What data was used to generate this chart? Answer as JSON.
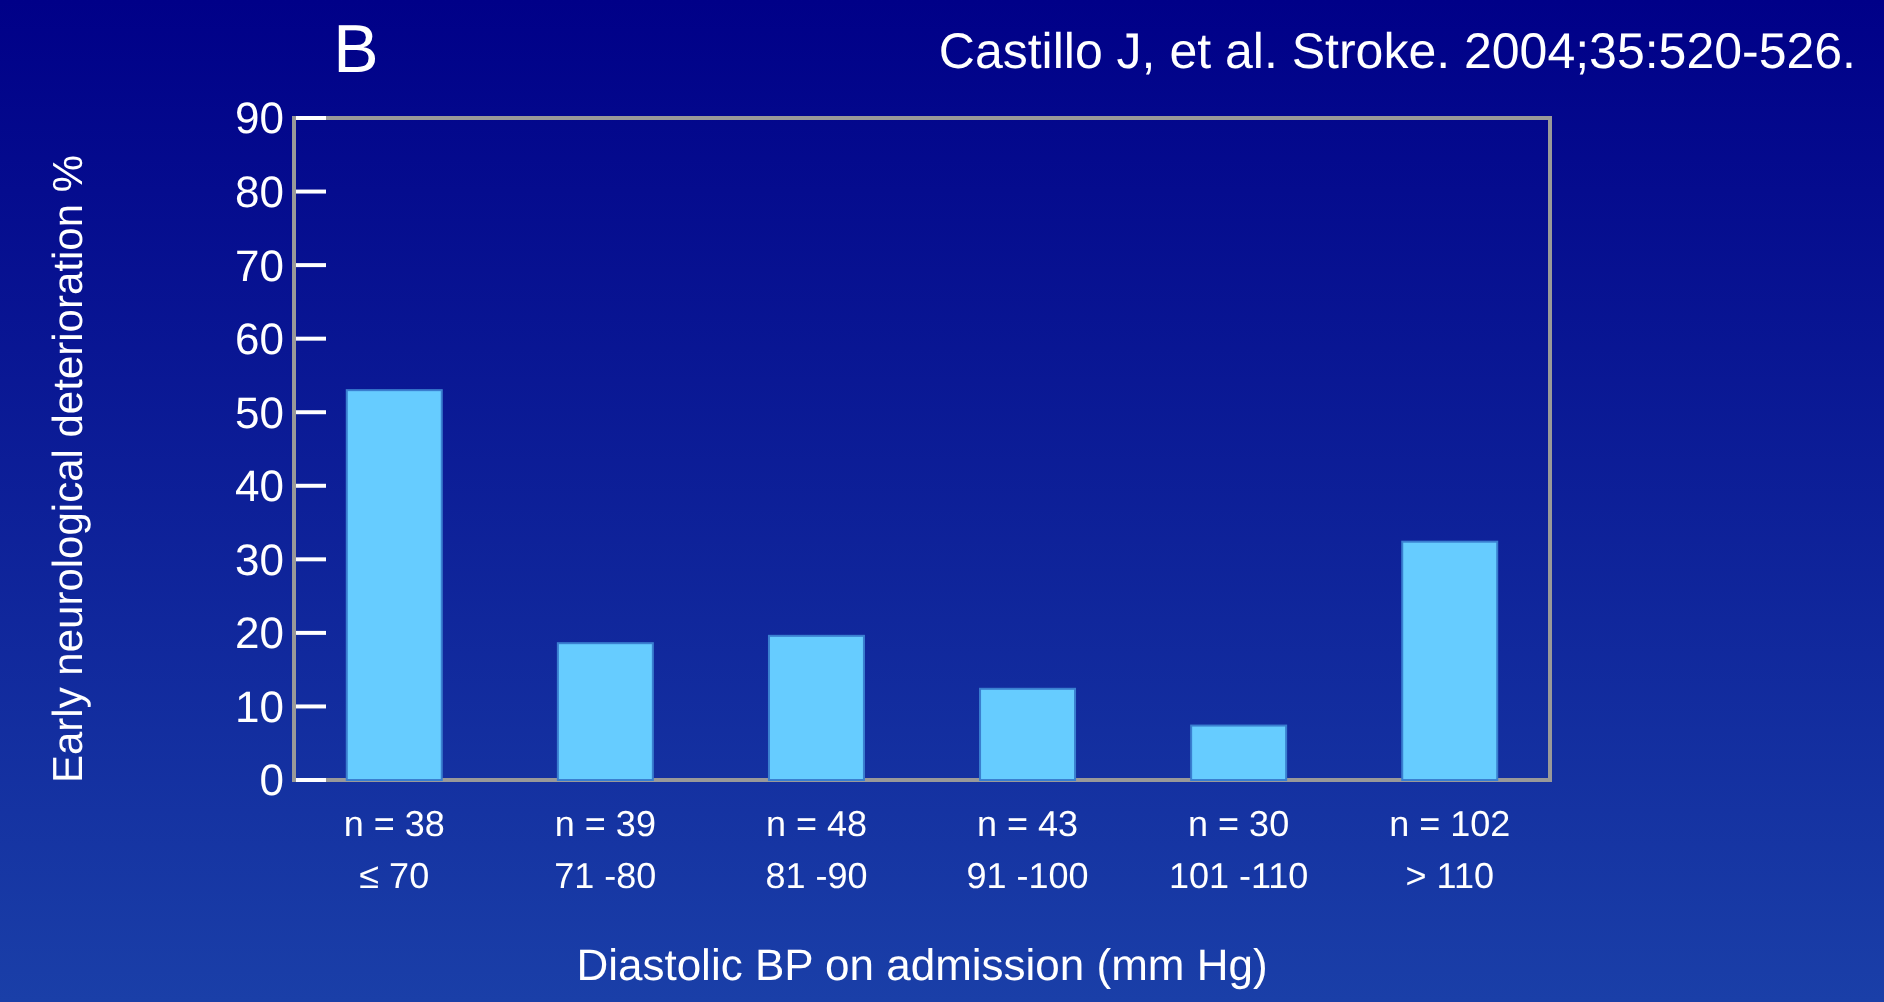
{
  "chart_data": {
    "type": "bar",
    "title": "B",
    "annotations": [
      "Castillo J, et al. Stroke. 2004;35:520-526."
    ],
    "categories": [
      "n = 38\n≤ 70",
      "n = 39\n71 -80",
      "n = 48\n81 -90",
      "n = 43\n91 -100",
      "n = 30\n101 -110",
      "n = 102\n> 110"
    ],
    "values": [
      53,
      18.6,
      19.6,
      12.4,
      7.4,
      32.4
    ],
    "color": "#66ccff",
    "xlabel": "Diastolic BP on admission (mm Hg)",
    "ylabel": "Early neurological deterioration %",
    "ylim": [
      0,
      90
    ],
    "yticks": [
      0,
      10,
      20,
      30,
      40,
      50,
      60,
      70,
      80,
      90
    ],
    "grid": false
  }
}
